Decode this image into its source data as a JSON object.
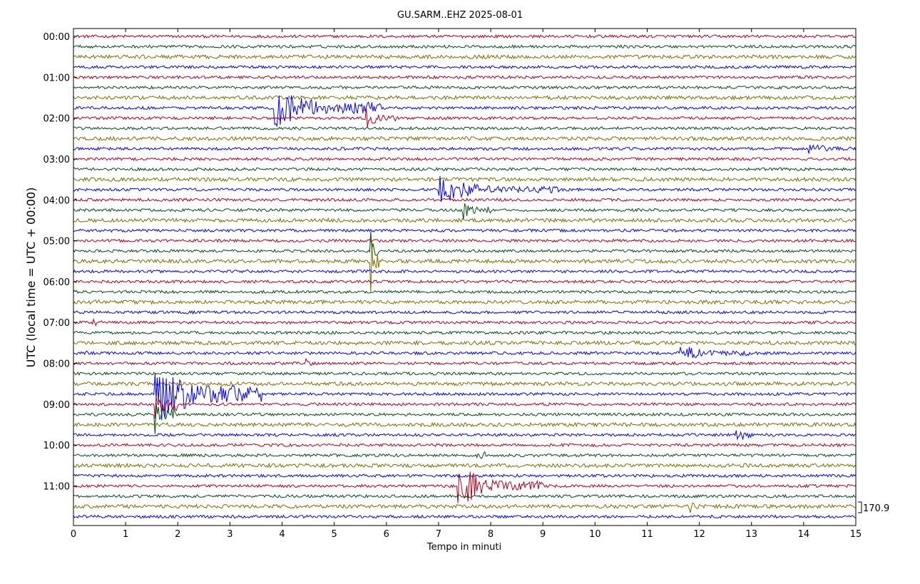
{
  "chart_data": {
    "type": "line",
    "title": "GU.SARM..EHZ 2025-08-01",
    "xlabel": "Tempo in minuti",
    "ylabel": "UTC (local time = UTC + 00:00)",
    "xlim": [
      0,
      15
    ],
    "x_ticks": [
      "0",
      "1",
      "2",
      "3",
      "4",
      "5",
      "6",
      "7",
      "8",
      "9",
      "10",
      "11",
      "12",
      "13",
      "14",
      "15"
    ],
    "y_ticks": [
      "00:00",
      "01:00",
      "02:00",
      "03:00",
      "04:00",
      "05:00",
      "06:00",
      "07:00",
      "08:00",
      "09:00",
      "10:00",
      "11:00"
    ],
    "rows": 48,
    "minutes_per_row": 15,
    "first_row_start": "00:00",
    "color_cycle": [
      "#b0001c",
      "#004d14",
      "#7a7000",
      "#0000ff"
    ],
    "scale_label": "170.9",
    "events": [
      {
        "row": 7,
        "start_min": 3.85,
        "end_min": 5.9,
        "peak": 2.3
      },
      {
        "row": 8,
        "start_min": 5.6,
        "end_min": 6.2,
        "peak": 1.2
      },
      {
        "row": 11,
        "start_min": 14.1,
        "end_min": 15.0,
        "peak": 0.8
      },
      {
        "row": 15,
        "start_min": 7.0,
        "end_min": 9.3,
        "peak": 1.4
      },
      {
        "row": 17,
        "start_min": 7.45,
        "end_min": 8.0,
        "peak": 1.3
      },
      {
        "row": 21,
        "start_min": 5.7,
        "end_min": 5.85,
        "peak": 2.4
      },
      {
        "row": 22,
        "start_min": 5.7,
        "end_min": 5.85,
        "peak": 3.2
      },
      {
        "row": 28,
        "start_min": 0.35,
        "end_min": 0.55,
        "peak": 1.0
      },
      {
        "row": 31,
        "start_min": 0.2,
        "end_min": 0.3,
        "peak": 0.9
      },
      {
        "row": 31,
        "start_min": 11.6,
        "end_min": 13.0,
        "peak": 1.0
      },
      {
        "row": 32,
        "start_min": 4.45,
        "end_min": 4.6,
        "peak": 0.9
      },
      {
        "row": 35,
        "start_min": 1.55,
        "end_min": 3.6,
        "peak": 3.3
      },
      {
        "row": 36,
        "start_min": 1.55,
        "end_min": 2.0,
        "peak": 2.5
      },
      {
        "row": 37,
        "start_min": 1.55,
        "end_min": 1.95,
        "peak": 2.3
      },
      {
        "row": 39,
        "start_min": 12.7,
        "end_min": 13.5,
        "peak": 0.7
      },
      {
        "row": 41,
        "start_min": 7.7,
        "end_min": 7.9,
        "peak": 1.5
      },
      {
        "row": 44,
        "start_min": 7.35,
        "end_min": 9.0,
        "peak": 2.3
      },
      {
        "row": 46,
        "start_min": 11.8,
        "end_min": 12.1,
        "peak": 0.9
      }
    ]
  }
}
